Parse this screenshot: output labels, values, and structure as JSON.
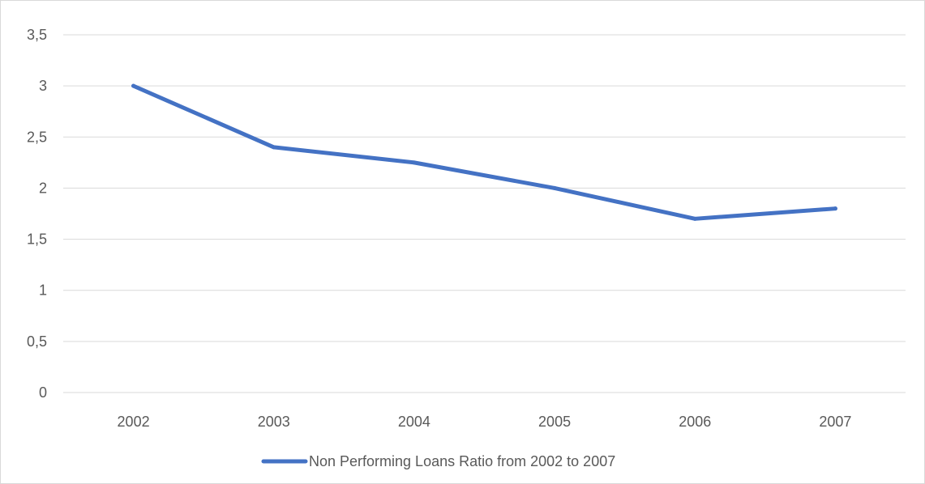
{
  "chart_data": {
    "type": "line",
    "title": "",
    "xlabel": "",
    "ylabel": "",
    "categories": [
      "2002",
      "2003",
      "2004",
      "2005",
      "2006",
      "2007"
    ],
    "series": [
      {
        "name": "Non Performing Loans Ratio from 2002 to 2007",
        "values": [
          3.0,
          2.4,
          2.25,
          2.0,
          1.7,
          1.8
        ],
        "color": "#4472c4"
      }
    ],
    "ylim": [
      0,
      3.5
    ],
    "yticks": [
      "0",
      "0,5",
      "1",
      "1,5",
      "2",
      "2,5",
      "3",
      "3,5"
    ],
    "ytick_values": [
      0,
      0.5,
      1,
      1.5,
      2,
      2.5,
      3,
      3.5
    ],
    "grid": true,
    "legend_position": "bottom",
    "gridline_color": "#d9d9d9",
    "text_color": "#595959"
  }
}
